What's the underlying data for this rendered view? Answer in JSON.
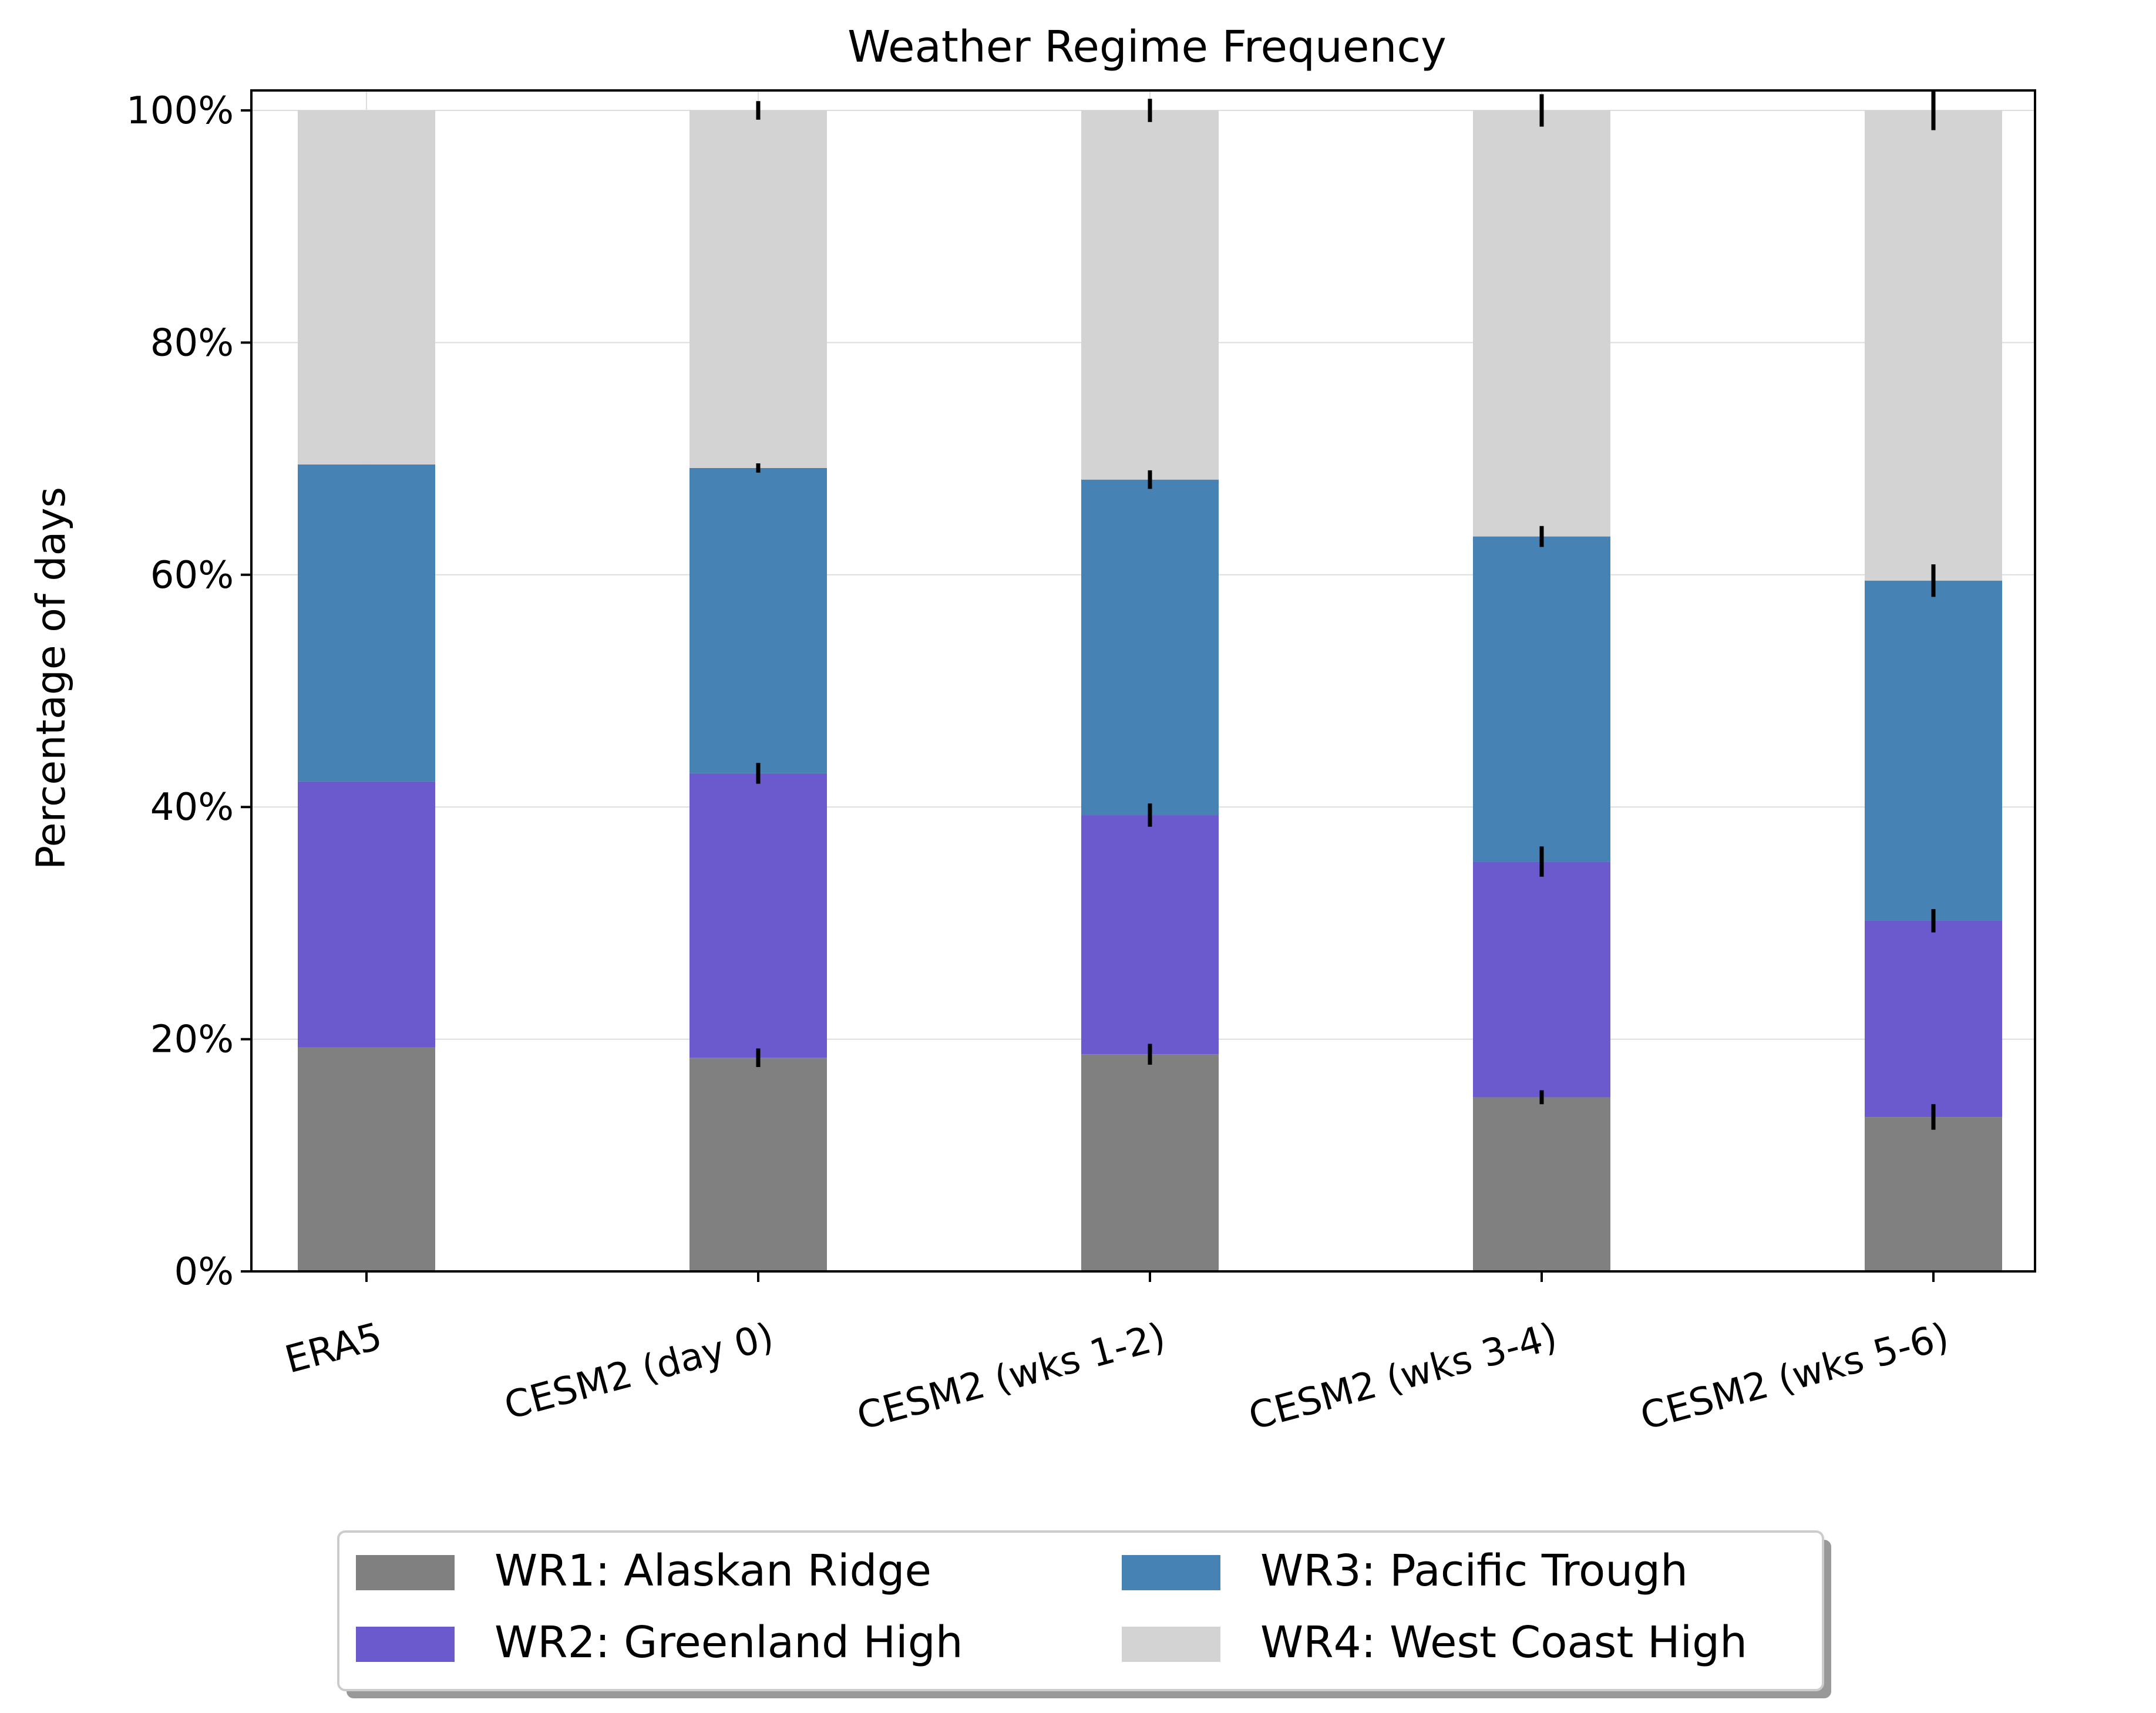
{
  "chart_data": {
    "type": "bar",
    "stacked": true,
    "title": "Weather Regime Frequency",
    "xlabel": "",
    "ylabel": "Percentage of days",
    "ylim": [
      0,
      100
    ],
    "yticks": [
      0,
      20,
      40,
      60,
      80,
      100
    ],
    "ytick_labels": [
      "0%",
      "20%",
      "40%",
      "60%",
      "80%",
      "100%"
    ],
    "grid": true,
    "legend_position": "bottom-center",
    "categories": [
      "ERA5",
      "CESM2 (day 0)",
      "CESM2 (wks 1-2)",
      "CESM2 (wks 3-4)",
      "CESM2 (wks 5-6)"
    ],
    "series": [
      {
        "name": "WR1: Alaskan Ridge",
        "color": "#808080",
        "values": [
          19.3,
          18.4,
          18.7,
          15.0,
          13.3
        ],
        "error": [
          0,
          0.8,
          0.9,
          0.6,
          1.1
        ]
      },
      {
        "name": "WR2: Greenland High",
        "color": "#6a5acd",
        "values": [
          22.9,
          24.5,
          20.6,
          20.3,
          16.9
        ],
        "error": [
          0,
          0.9,
          1.0,
          1.3,
          1.0
        ]
      },
      {
        "name": "WR3: Pacific Trough",
        "color": "#4682b4",
        "values": [
          27.3,
          26.3,
          28.9,
          28.0,
          29.3
        ],
        "error": [
          0,
          0.4,
          0.8,
          0.9,
          1.4
        ]
      },
      {
        "name": "WR4: West Coast High",
        "color": "#d3d3d3",
        "values": [
          30.5,
          30.8,
          31.8,
          36.7,
          40.5
        ],
        "error": [
          0,
          0.8,
          1.0,
          1.4,
          1.7
        ]
      }
    ]
  }
}
